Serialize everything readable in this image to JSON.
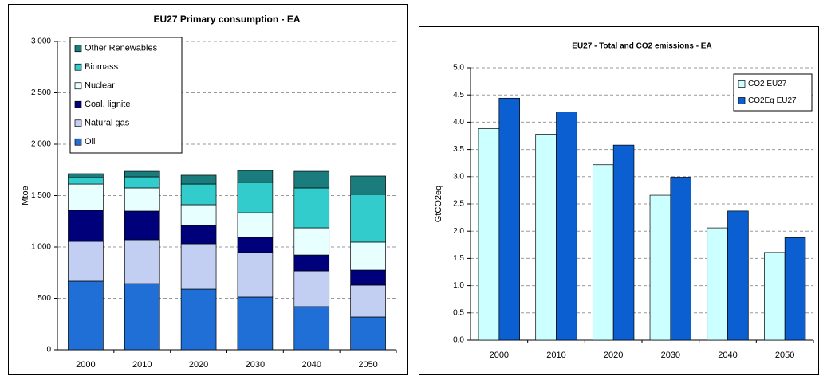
{
  "chart_data": [
    {
      "type": "bar",
      "stacked": true,
      "title": "EU27 Primary consumption - EA",
      "y_label": "Mtoe",
      "categories": [
        "2000",
        "2010",
        "2020",
        "2030",
        "2040",
        "2050"
      ],
      "series": [
        {
          "name": "Oil",
          "color": "#1f6fd6",
          "values": [
            667,
            643,
            589,
            512,
            419,
            318
          ]
        },
        {
          "name": "Natural gas",
          "color": "#c3cff2",
          "values": [
            387,
            427,
            442,
            434,
            348,
            310
          ]
        },
        {
          "name": "Coal, lignite",
          "color": "#00007a",
          "values": [
            303,
            279,
            178,
            147,
            155,
            147
          ]
        },
        {
          "name": "Nuclear",
          "color": "#e8ffff",
          "values": [
            255,
            225,
            202,
            240,
            264,
            272
          ]
        },
        {
          "name": "Biomass",
          "color": "#33cccc",
          "values": [
            62,
            108,
            201,
            295,
            388,
            465
          ]
        },
        {
          "name": "Other Renewables",
          "color": "#1a7c7c",
          "values": [
            39,
            54,
            86,
            116,
            162,
            178
          ]
        }
      ],
      "ylim": [
        0,
        3000
      ],
      "yticks": [
        0,
        500,
        {
          "value": 1000,
          "label": "1 000"
        },
        {
          "value": 1500,
          "label": "1 500"
        },
        {
          "value": 2000,
          "label": "2 000"
        },
        {
          "value": 2500,
          "label": "2 500"
        },
        {
          "value": 3000,
          "label": "3 000"
        }
      ],
      "grid": true,
      "legend": "upper left"
    },
    {
      "type": "bar",
      "stacked": false,
      "title": "EU27 - Total and CO2 emissions - EA",
      "y_label": "GtCO2eq",
      "categories": [
        "2000",
        "2010",
        "2020",
        "2030",
        "2040",
        "2050"
      ],
      "series": [
        {
          "name": "CO2 EU27",
          "color": "#ccffff",
          "values": [
            3.88,
            3.78,
            3.22,
            2.66,
            2.06,
            1.61
          ]
        },
        {
          "name": "CO2Eq EU27",
          "color": "#0b5fd0",
          "values": [
            4.44,
            4.19,
            3.58,
            2.99,
            2.37,
            1.88
          ]
        }
      ],
      "ylim": [
        0,
        5
      ],
      "yticks": [
        {
          "value": 0,
          "label": "0.0"
        },
        0.5,
        {
          "value": 1,
          "label": "1.0"
        },
        1.5,
        {
          "value": 2,
          "label": "2.0"
        },
        2.5,
        {
          "value": 3,
          "label": "3.0"
        },
        3.5,
        {
          "value": 4,
          "label": "4.0"
        },
        4.5,
        {
          "value": 5,
          "label": "5.0"
        }
      ],
      "grid": true,
      "legend": "upper right"
    }
  ]
}
